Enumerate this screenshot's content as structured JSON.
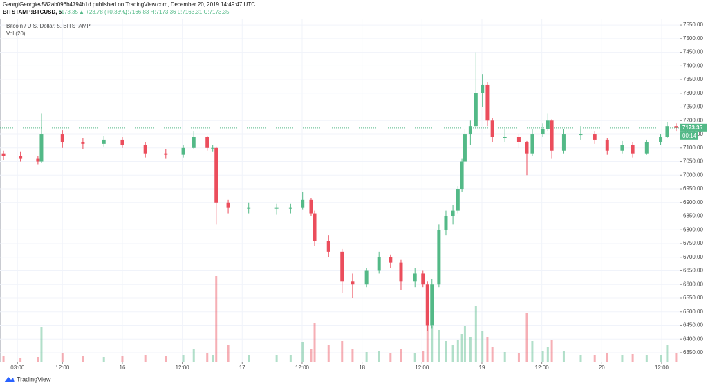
{
  "header": {
    "published": "GeorgiGeorgiev582ab096b4794b1d published on TradingView.com, December 20, 2019 14:49:47 UTC",
    "symbol": "BITSTAMP:BTCUSD, 5",
    "price": "7173.35",
    "change": "▲ +23.78 (+0.33%)",
    "ohlc": "O:7166.83 H:7173.36 L:7163.31 C:7173.35"
  },
  "chart_data": {
    "type": "candlestick",
    "title": "Bitcoin / U.S. Dollar, 5, BITSTAMP",
    "volume_label": "Vol (20)",
    "up_color": "#53b987",
    "down_color": "#eb4d5c",
    "grid": true,
    "x": [
      0.2,
      3.6,
      7.1,
      7.8,
      12.0,
      16.1,
      20.3,
      24.0,
      28.6,
      32.7,
      36.2,
      38.3,
      41.0,
      42.1,
      42.8,
      45.2,
      49.3,
      54.9,
      57.7,
      60.1,
      61.8,
      62.5,
      65.3,
      68.0,
      70.1,
      72.9,
      75.4,
      77.7,
      79.8,
      82.6,
      84.2,
      85.1,
      86.0,
      87.4,
      88.8,
      90.2,
      91.2,
      92.0,
      92.6,
      93.7,
      94.8,
      96.1,
      97.1,
      98.1,
      100.6,
      103.4,
      105.0,
      106.1,
      108.2,
      109.2,
      110.0,
      112.4,
      115.8,
      118.6,
      121.1,
      124.1,
      126.2,
      129.0,
      131.8,
      133.1,
      134.9
    ],
    "open": [
      7080,
      7070,
      7060,
      7050,
      7150,
      7120,
      7115,
      7130,
      7110,
      7080,
      7075,
      7100,
      7140,
      7100,
      7100,
      6900,
      6880,
      6880,
      6880,
      6880,
      6910,
      6860,
      6760,
      6720,
      6610,
      6600,
      6650,
      6700,
      6680,
      6610,
      6640,
      6600,
      6450,
      6600,
      6800,
      6850,
      6870,
      6950,
      7050,
      7150,
      7180,
      7300,
      7330,
      7200,
      7140,
      7140,
      7120,
      7080,
      7150,
      7170,
      7200,
      7090,
      7150,
      7150,
      7130,
      7090,
      7110,
      7080,
      7120,
      7140,
      7180
    ],
    "high": [
      7090,
      7085,
      7070,
      7225,
      7165,
      7135,
      7145,
      7140,
      7120,
      7095,
      7110,
      7160,
      7145,
      7110,
      7105,
      6910,
      6900,
      6895,
      6895,
      6940,
      6915,
      6870,
      6780,
      6730,
      6640,
      6660,
      6720,
      6710,
      6690,
      6660,
      6650,
      6610,
      6620,
      6820,
      6870,
      6890,
      6960,
      7060,
      7170,
      7200,
      7450,
      7370,
      7340,
      7210,
      7170,
      7150,
      7125,
      7170,
      7190,
      7225,
      7205,
      7170,
      7180,
      7160,
      7135,
      7125,
      7120,
      7130,
      7150,
      7195,
      7190
    ],
    "low": [
      7055,
      7050,
      7040,
      7045,
      7100,
      7095,
      7105,
      7100,
      7065,
      7060,
      7065,
      7095,
      7090,
      7085,
      6820,
      6860,
      6860,
      6855,
      6860,
      6875,
      6850,
      6740,
      6700,
      6570,
      6550,
      6590,
      6640,
      6660,
      6580,
      6590,
      6590,
      6430,
      6440,
      6590,
      6780,
      6820,
      6860,
      6940,
      7040,
      7110,
      7170,
      7250,
      7180,
      7120,
      7120,
      7100,
      7000,
      7070,
      7140,
      7160,
      7060,
      7080,
      7130,
      7115,
      7075,
      7080,
      7065,
      7075,
      7110,
      7135,
      7160
    ],
    "close": [
      7070,
      7060,
      7050,
      7150,
      7120,
      7115,
      7130,
      7110,
      7080,
      7075,
      7100,
      7140,
      7100,
      7100,
      6900,
      6880,
      6880,
      6880,
      6880,
      6910,
      6860,
      6760,
      6720,
      6610,
      6600,
      6650,
      6700,
      6680,
      6610,
      6640,
      6600,
      6450,
      6600,
      6800,
      6850,
      6870,
      6950,
      7050,
      7150,
      7180,
      7300,
      7330,
      7200,
      7140,
      7140,
      7120,
      7080,
      7150,
      7170,
      7200,
      7090,
      7150,
      7150,
      7130,
      7090,
      7110,
      7080,
      7120,
      7140,
      7180,
      7173.35
    ],
    "volume": [
      40,
      30,
      35,
      250,
      60,
      40,
      35,
      40,
      45,
      40,
      50,
      90,
      60,
      50,
      620,
      120,
      50,
      45,
      45,
      140,
      90,
      280,
      120,
      150,
      90,
      70,
      80,
      60,
      90,
      60,
      80,
      350,
      260,
      230,
      150,
      120,
      160,
      200,
      260,
      180,
      400,
      220,
      180,
      110,
      70,
      60,
      350,
      150,
      80,
      110,
      160,
      80,
      50,
      45,
      60,
      45,
      55,
      50,
      50,
      120,
      60
    ],
    "xlim": [
      -0.5,
      135.6
    ],
    "ylim": [
      6317,
      7573
    ],
    "y2lim": [
      0,
      650
    ],
    "xticks": [
      {
        "value": 3,
        "label": "03:00"
      },
      {
        "value": 12,
        "label": "12:00"
      },
      {
        "value": 24,
        "label": "16"
      },
      {
        "value": 36,
        "label": "12:00"
      },
      {
        "value": 48,
        "label": "17"
      },
      {
        "value": 60,
        "label": "12:00"
      },
      {
        "value": 72,
        "label": "18"
      },
      {
        "value": 84,
        "label": "12:00"
      },
      {
        "value": 96,
        "label": "19"
      },
      {
        "value": 108,
        "label": "12:00"
      },
      {
        "value": 120,
        "label": "20"
      },
      {
        "value": 132,
        "label": "12:00"
      }
    ],
    "yticks": [
      {
        "value": 6350,
        "label": "6350.00"
      },
      {
        "value": 6400,
        "label": "6400.00"
      },
      {
        "value": 6450,
        "label": "6450.00"
      },
      {
        "value": 6500,
        "label": "6500.00"
      },
      {
        "value": 6550,
        "label": "6550.00"
      },
      {
        "value": 6600,
        "label": "6600.00"
      },
      {
        "value": 6650,
        "label": "6650.00"
      },
      {
        "value": 6700,
        "label": "6700.00"
      },
      {
        "value": 6750,
        "label": "6750.00"
      },
      {
        "value": 6800,
        "label": "6800.00"
      },
      {
        "value": 6850,
        "label": "6850.00"
      },
      {
        "value": 6900,
        "label": "6900.00"
      },
      {
        "value": 6950,
        "label": "6950.00"
      },
      {
        "value": 7000,
        "label": "7000.00"
      },
      {
        "value": 7050,
        "label": "7050.00"
      },
      {
        "value": 7100,
        "label": "7100.00"
      },
      {
        "value": 7150,
        "label": "7150.00"
      },
      {
        "value": 7200,
        "label": "7200.00"
      },
      {
        "value": 7250,
        "label": "7250.00"
      },
      {
        "value": 7300,
        "label": "7300.00"
      },
      {
        "value": 7350,
        "label": "7350.00"
      },
      {
        "value": 7400,
        "label": "7400.00"
      },
      {
        "value": 7450,
        "label": "7450.00"
      },
      {
        "value": 7500,
        "label": "7500.00"
      },
      {
        "value": 7550,
        "label": "7550.00"
      }
    ],
    "last_price": 7173.35,
    "countdown": "00:14",
    "brand": "TradingView"
  }
}
